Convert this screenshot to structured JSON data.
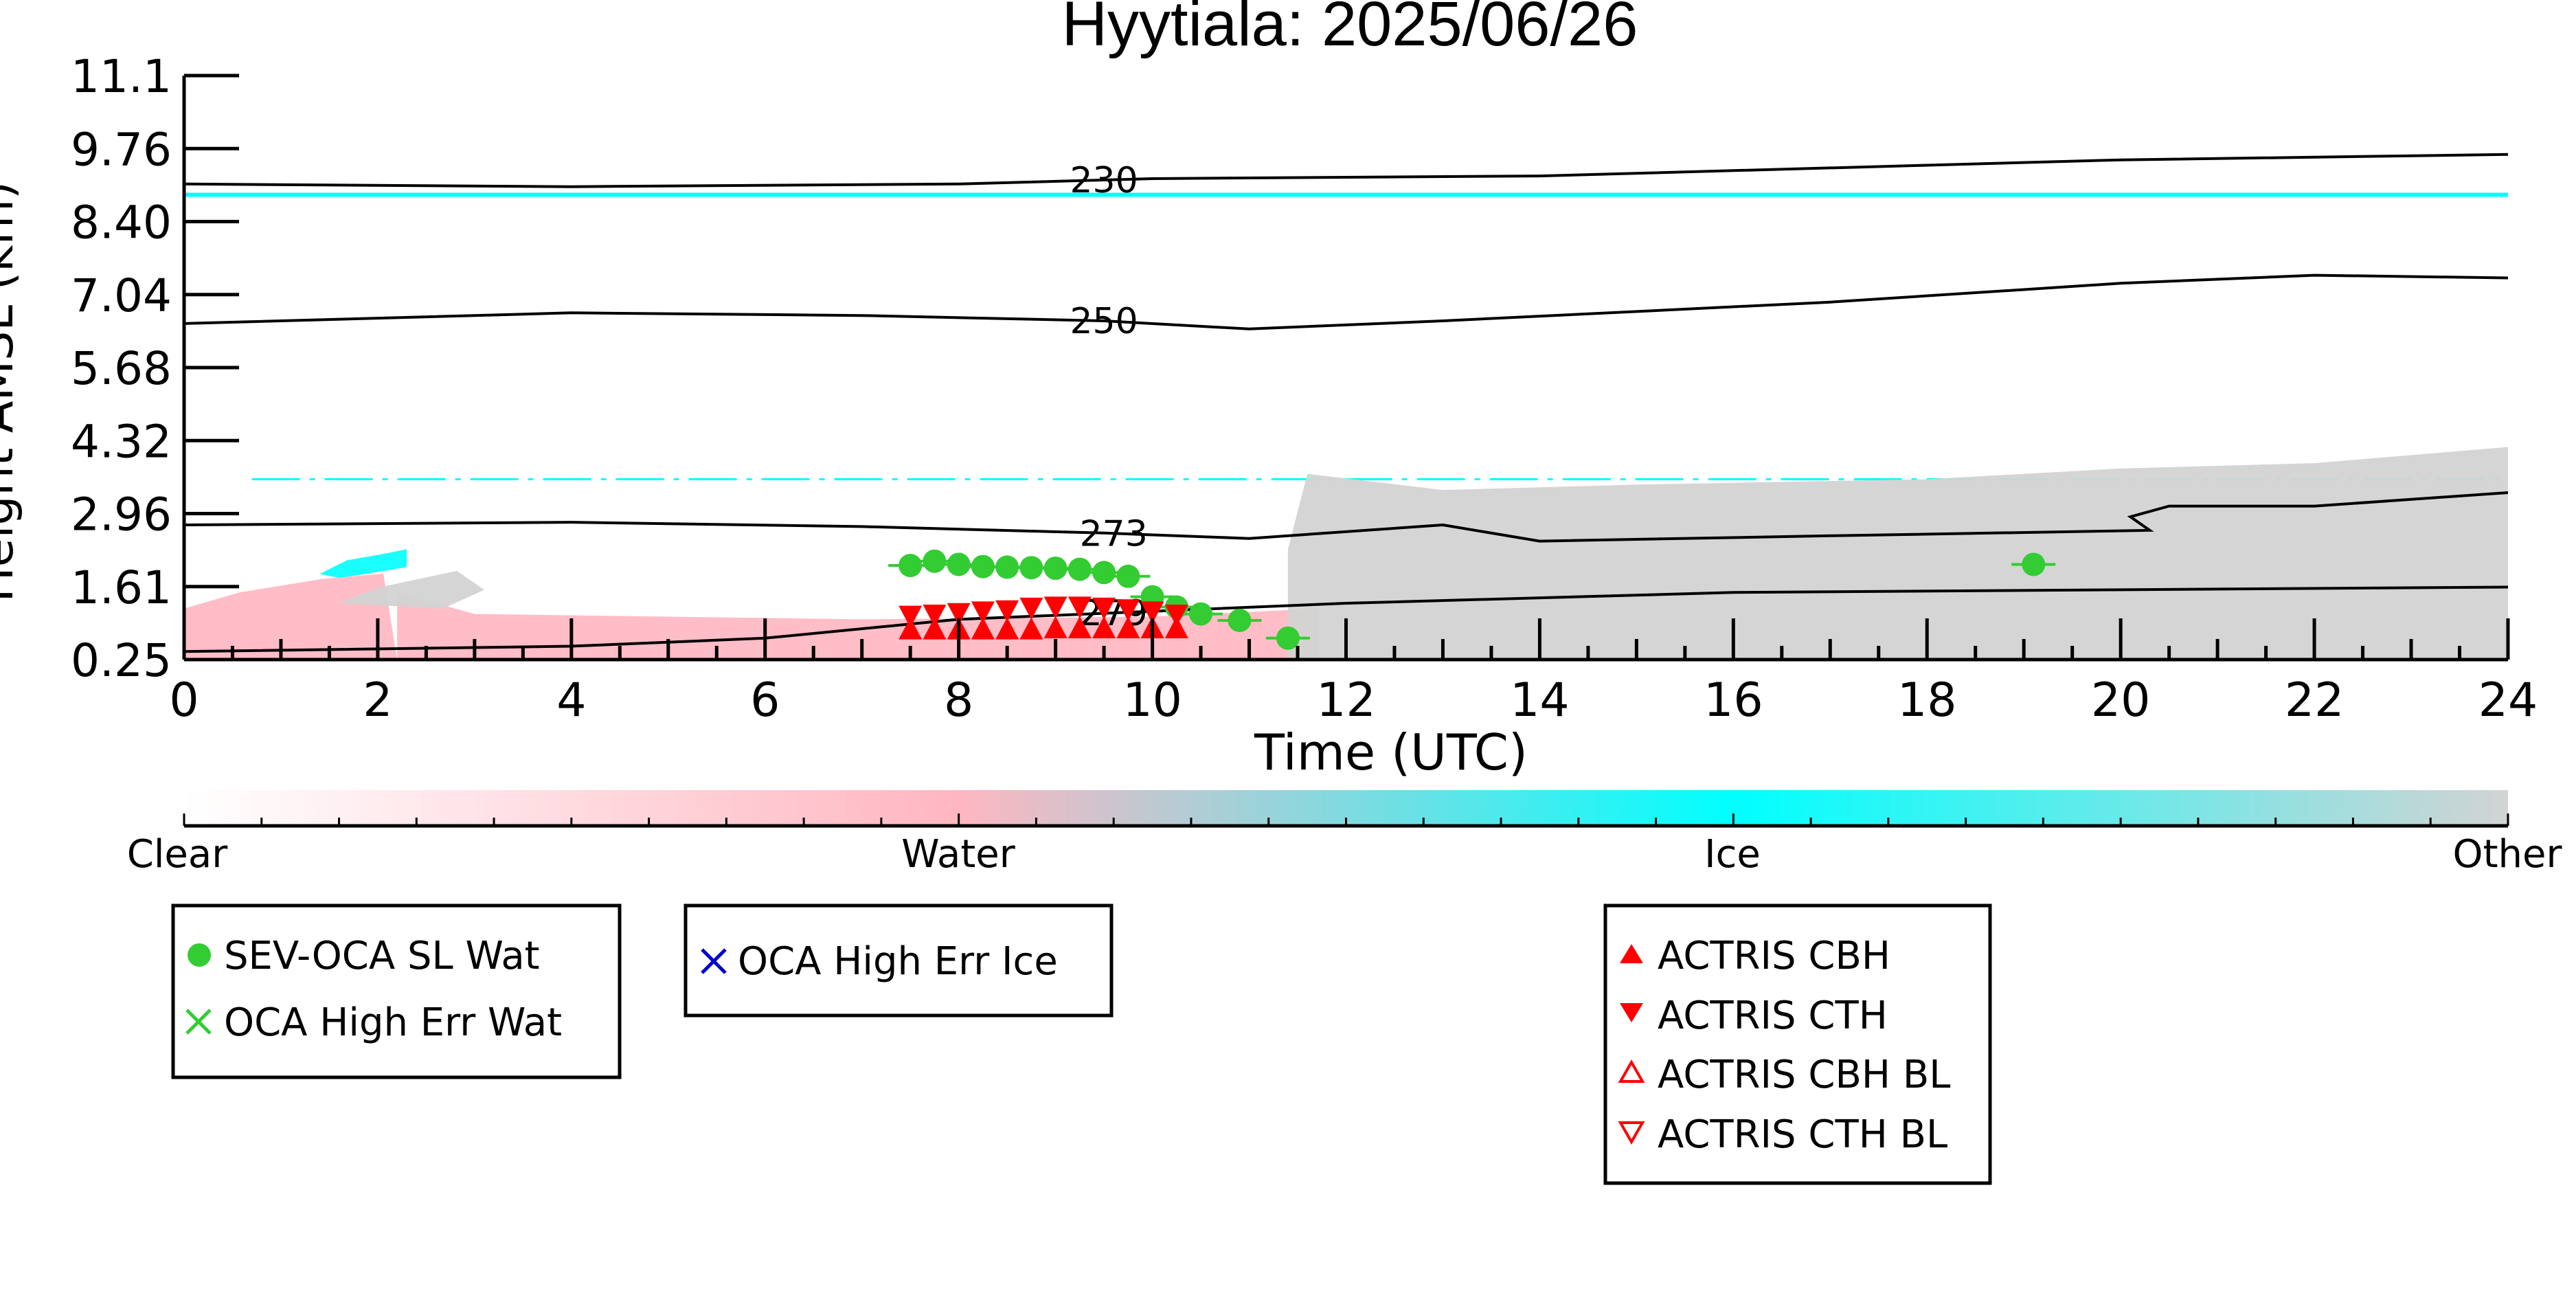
{
  "chart_data": {
    "type": "scatter",
    "title": "Hyytiala: 2025/06/26",
    "xlabel": "Time (UTC)",
    "ylabel": "Height AMSL (km)",
    "xlim": [
      0,
      24
    ],
    "ylim": [
      0.25,
      11.1
    ],
    "x_ticks": [
      "0",
      "2",
      "4",
      "6",
      "8",
      "10",
      "12",
      "14",
      "16",
      "18",
      "20",
      "22",
      "24"
    ],
    "y_ticks": [
      "0.25",
      "1.61",
      "2.96",
      "4.32",
      "5.68",
      "7.04",
      "8.40",
      "9.76",
      "11.1"
    ],
    "y_tick_values": [
      0.25,
      1.61,
      2.96,
      4.32,
      5.68,
      7.04,
      8.4,
      9.76,
      11.1
    ],
    "colorbar": {
      "labels": [
        "Clear",
        "Water",
        "Ice",
        "Other"
      ],
      "colors": {
        "clear": "#ffffff",
        "water": "#ffb6c1",
        "ice": "#00ffff",
        "other": "#d3d3d3"
      }
    },
    "temperature_contours": [
      {
        "label": "230",
        "label_time": 9.5,
        "points": [
          [
            0,
            9.1
          ],
          [
            4,
            9.05
          ],
          [
            8,
            9.1
          ],
          [
            10,
            9.2
          ],
          [
            14,
            9.25
          ],
          [
            18,
            9.45
          ],
          [
            20,
            9.55
          ],
          [
            24,
            9.65
          ]
        ]
      },
      {
        "label": "250",
        "label_time": 9.5,
        "points": [
          [
            0,
            6.5
          ],
          [
            4,
            6.7
          ],
          [
            7,
            6.65
          ],
          [
            9.5,
            6.55
          ],
          [
            11,
            6.4
          ],
          [
            13,
            6.55
          ],
          [
            17,
            6.9
          ],
          [
            20,
            7.25
          ],
          [
            22,
            7.4
          ],
          [
            24,
            7.35
          ]
        ]
      },
      {
        "label": "273",
        "label_time": 9.6,
        "points": [
          [
            0,
            2.75
          ],
          [
            4,
            2.8
          ],
          [
            7,
            2.72
          ],
          [
            9.5,
            2.6
          ],
          [
            11,
            2.5
          ],
          [
            13,
            2.75
          ],
          [
            14,
            2.45
          ],
          [
            17,
            2.55
          ],
          [
            20.3,
            2.65
          ],
          [
            20.1,
            2.9
          ],
          [
            20.5,
            3.1
          ],
          [
            22,
            3.1
          ],
          [
            24,
            3.35
          ]
        ]
      },
      {
        "label": "279",
        "label_time": 9.6,
        "points": [
          [
            0,
            0.4
          ],
          [
            4,
            0.5
          ],
          [
            6,
            0.65
          ],
          [
            8,
            1.0
          ],
          [
            10,
            1.15
          ],
          [
            12,
            1.3
          ],
          [
            16,
            1.5
          ],
          [
            20,
            1.55
          ],
          [
            24,
            1.6
          ]
        ]
      }
    ],
    "masks": [
      {
        "class": "ice",
        "start": 0,
        "end": 24,
        "height": 8.9,
        "style": "solid"
      },
      {
        "class": "ice",
        "start": 0.7,
        "end": 24,
        "height": 3.6,
        "style": "dashed"
      },
      {
        "class": "ice",
        "start": 1.4,
        "end": 2.3,
        "height": 2.2,
        "style": "patch"
      },
      {
        "class": "water",
        "start": 0,
        "end": 2.2,
        "height": 1.85,
        "style": "patch"
      },
      {
        "class": "water",
        "start": 2.2,
        "end": 11.7,
        "height": 1.05,
        "style": "patch"
      },
      {
        "class": "other",
        "start": 1.6,
        "end": 3.1,
        "height": 1.9,
        "style": "patch"
      },
      {
        "class": "other",
        "start": 11.4,
        "end": 24,
        "height": 3.3,
        "style": "patch"
      }
    ],
    "series": [
      {
        "name": "SEV-OCA SL Wat",
        "marker": "circle",
        "color": "#33cc33",
        "points": [
          [
            7.5,
            2.0
          ],
          [
            7.75,
            2.08
          ],
          [
            8.0,
            2.02
          ],
          [
            8.25,
            1.98
          ],
          [
            8.5,
            1.97
          ],
          [
            8.75,
            1.96
          ],
          [
            9.0,
            1.95
          ],
          [
            9.25,
            1.93
          ],
          [
            9.5,
            1.87
          ],
          [
            9.75,
            1.8
          ],
          [
            10.0,
            1.42
          ],
          [
            10.25,
            1.23
          ],
          [
            10.5,
            1.1
          ],
          [
            10.9,
            0.98
          ],
          [
            11.4,
            0.65
          ],
          [
            19.1,
            2.02
          ]
        ]
      },
      {
        "name": "OCA High Err Wat",
        "marker": "x",
        "color": "#33cc33",
        "points": []
      },
      {
        "name": "OCA High Err Ice",
        "marker": "x",
        "color": "#0000cc",
        "points": []
      },
      {
        "name": "ACTRIS CBH",
        "marker": "triangle-up",
        "color": "#ff0000",
        "points": [
          [
            7.5,
            0.78
          ],
          [
            7.75,
            0.78
          ],
          [
            8.0,
            0.78
          ],
          [
            8.25,
            0.78
          ],
          [
            8.5,
            0.78
          ],
          [
            8.75,
            0.78
          ],
          [
            9.0,
            0.8
          ],
          [
            9.25,
            0.8
          ],
          [
            9.5,
            0.8
          ],
          [
            9.75,
            0.8
          ],
          [
            10.0,
            0.8
          ],
          [
            10.25,
            0.8
          ]
        ]
      },
      {
        "name": "ACTRIS CTH",
        "marker": "triangle-down",
        "color": "#ff0000",
        "points": [
          [
            7.5,
            1.1
          ],
          [
            7.75,
            1.12
          ],
          [
            8.0,
            1.15
          ],
          [
            8.25,
            1.18
          ],
          [
            8.5,
            1.2
          ],
          [
            8.75,
            1.25
          ],
          [
            9.0,
            1.27
          ],
          [
            9.25,
            1.27
          ],
          [
            9.5,
            1.25
          ],
          [
            9.75,
            1.22
          ],
          [
            10.0,
            1.18
          ],
          [
            10.25,
            1.12
          ]
        ]
      },
      {
        "name": "ACTRIS CBH BL",
        "marker": "triangle-up-open",
        "color": "#ff0000",
        "points": []
      },
      {
        "name": "ACTRIS CTH BL",
        "marker": "triangle-down-open",
        "color": "#ff0000",
        "points": []
      }
    ],
    "legends": [
      [
        "SEV-OCA SL Wat",
        "OCA High Err Wat"
      ],
      [
        "OCA High Err Ice"
      ],
      [
        "ACTRIS CBH",
        "ACTRIS CTH",
        "ACTRIS CBH BL",
        "ACTRIS CTH BL"
      ]
    ]
  }
}
